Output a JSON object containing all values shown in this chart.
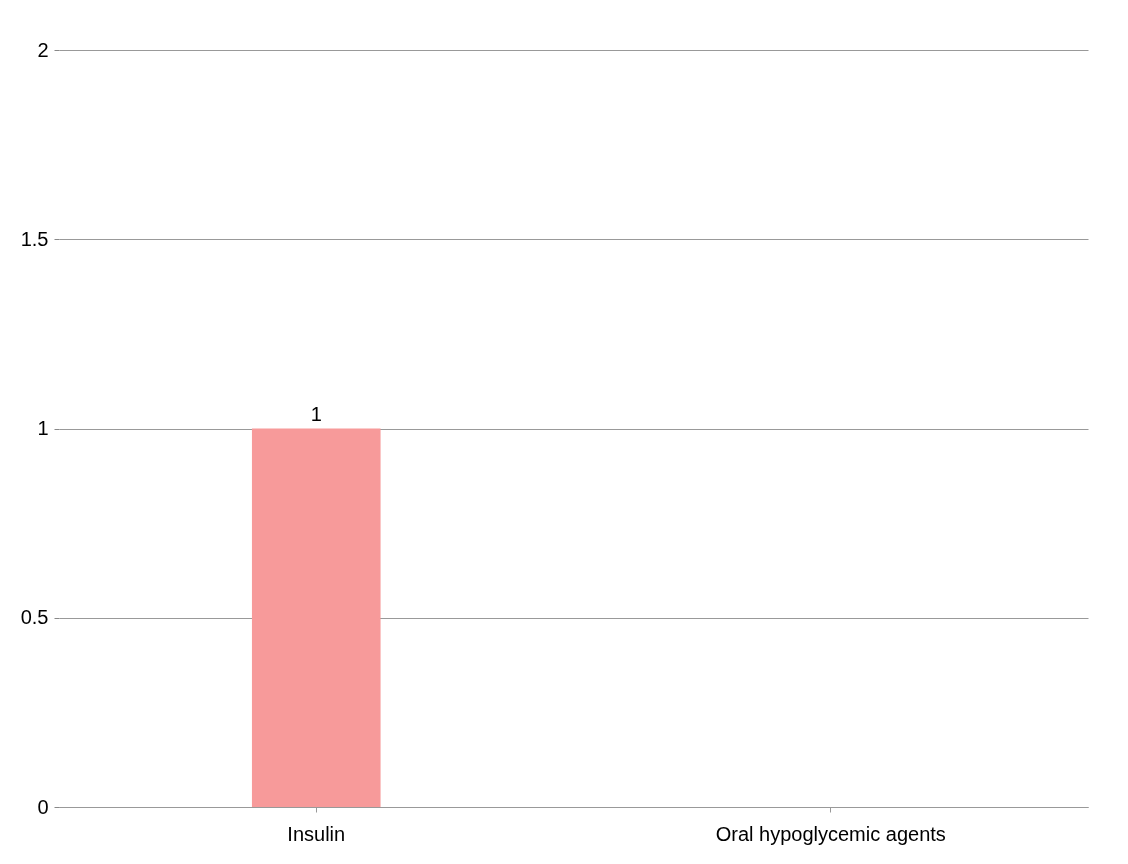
{
  "chart_data": {
    "type": "bar",
    "categories": [
      "Insulin",
      "Oral hypoglycemic agents"
    ],
    "values": [
      1,
      0
    ],
    "colors": [
      "#f79a9a",
      "#0a1e50"
    ],
    "value_labels": [
      "1",
      null
    ],
    "ylim": [
      0,
      2
    ],
    "yticks": [
      0,
      0.5,
      1,
      1.5,
      2
    ],
    "grid": "y"
  }
}
